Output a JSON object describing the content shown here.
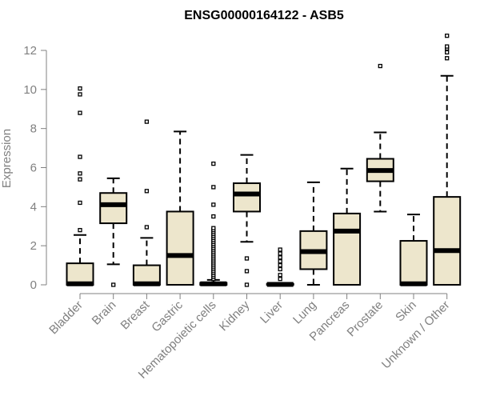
{
  "chart_data": {
    "type": "box",
    "title": "ENSG00000164122 - ASB5",
    "xlabel": "",
    "ylabel": "Expression",
    "ylim": [
      0,
      12.5
    ],
    "yticks": [
      0,
      2,
      4,
      6,
      8,
      10,
      12
    ],
    "grid": false,
    "legend": "none",
    "colors": {
      "box_fill": "#ede6cc",
      "box_stroke": "#000000",
      "axis": "#808080",
      "median": "#000000"
    },
    "categories": [
      "Bladder",
      "Brain",
      "Breast",
      "Gastric",
      "Hematopoietic cells",
      "Kidney",
      "Liver",
      "Lung",
      "Pancreas",
      "Prostate",
      "Skin",
      "Unknown / Other"
    ],
    "boxes": [
      {
        "category": "Bladder",
        "q1": 0,
        "median": 0.05,
        "q3": 1.1,
        "whisker_low": 0,
        "whisker_high": 2.55,
        "outliers": [
          2.8,
          4.2,
          5.4,
          5.7,
          6.55,
          8.8,
          9.75,
          10.05
        ]
      },
      {
        "category": "Brain",
        "q1": 3.15,
        "median": 4.1,
        "q3": 4.7,
        "whisker_low": 1.05,
        "whisker_high": 5.45,
        "outliers": [
          0
        ]
      },
      {
        "category": "Breast",
        "q1": 0,
        "median": 0.05,
        "q3": 1.0,
        "whisker_low": 0,
        "whisker_high": 2.4,
        "outliers": [
          2.95,
          4.8,
          8.35
        ]
      },
      {
        "category": "Gastric",
        "q1": 0,
        "median": 1.5,
        "q3": 3.75,
        "whisker_low": 0,
        "whisker_high": 7.85,
        "outliers": []
      },
      {
        "category": "Hematopoietic cells",
        "q1": 0,
        "median": 0.05,
        "q3": 0.1,
        "whisker_low": 0,
        "whisker_high": 0.25,
        "outliers": [
          0.3,
          0.4,
          0.5,
          0.6,
          0.7,
          0.8,
          0.9,
          1.0,
          1.1,
          1.2,
          1.3,
          1.4,
          1.5,
          1.6,
          1.7,
          1.8,
          1.9,
          2.0,
          2.1,
          2.2,
          2.3,
          2.4,
          2.5,
          2.6,
          2.7,
          2.8,
          2.9,
          3.5,
          4.1,
          5.0,
          6.2
        ]
      },
      {
        "category": "Kidney",
        "q1": 3.75,
        "median": 4.65,
        "q3": 5.2,
        "whisker_low": 2.2,
        "whisker_high": 6.65,
        "outliers": [
          0,
          0.7,
          1.35
        ]
      },
      {
        "category": "Liver",
        "q1": 0,
        "median": 0.02,
        "q3": 0.05,
        "whisker_low": 0,
        "whisker_high": 0.1,
        "outliers": [
          0.3,
          0.5,
          0.8,
          1.0,
          1.2,
          1.4,
          1.6,
          1.8
        ]
      },
      {
        "category": "Lung",
        "q1": 0.8,
        "median": 1.7,
        "q3": 2.75,
        "whisker_low": 0,
        "whisker_high": 5.25,
        "outliers": []
      },
      {
        "category": "Pancreas",
        "q1": 0,
        "median": 2.75,
        "q3": 3.65,
        "whisker_low": 0,
        "whisker_high": 5.95,
        "outliers": []
      },
      {
        "category": "Prostate",
        "q1": 5.3,
        "median": 5.85,
        "q3": 6.45,
        "whisker_low": 3.75,
        "whisker_high": 7.8,
        "outliers": [
          11.2
        ]
      },
      {
        "category": "Skin",
        "q1": 0,
        "median": 0.05,
        "q3": 2.25,
        "whisker_low": 0,
        "whisker_high": 3.6,
        "outliers": []
      },
      {
        "category": "Unknown / Other",
        "q1": 0,
        "median": 1.75,
        "q3": 4.5,
        "whisker_low": 0,
        "whisker_high": 10.7,
        "outliers": [
          11.6,
          11.9,
          12.1,
          12.2,
          12.75
        ]
      }
    ]
  }
}
